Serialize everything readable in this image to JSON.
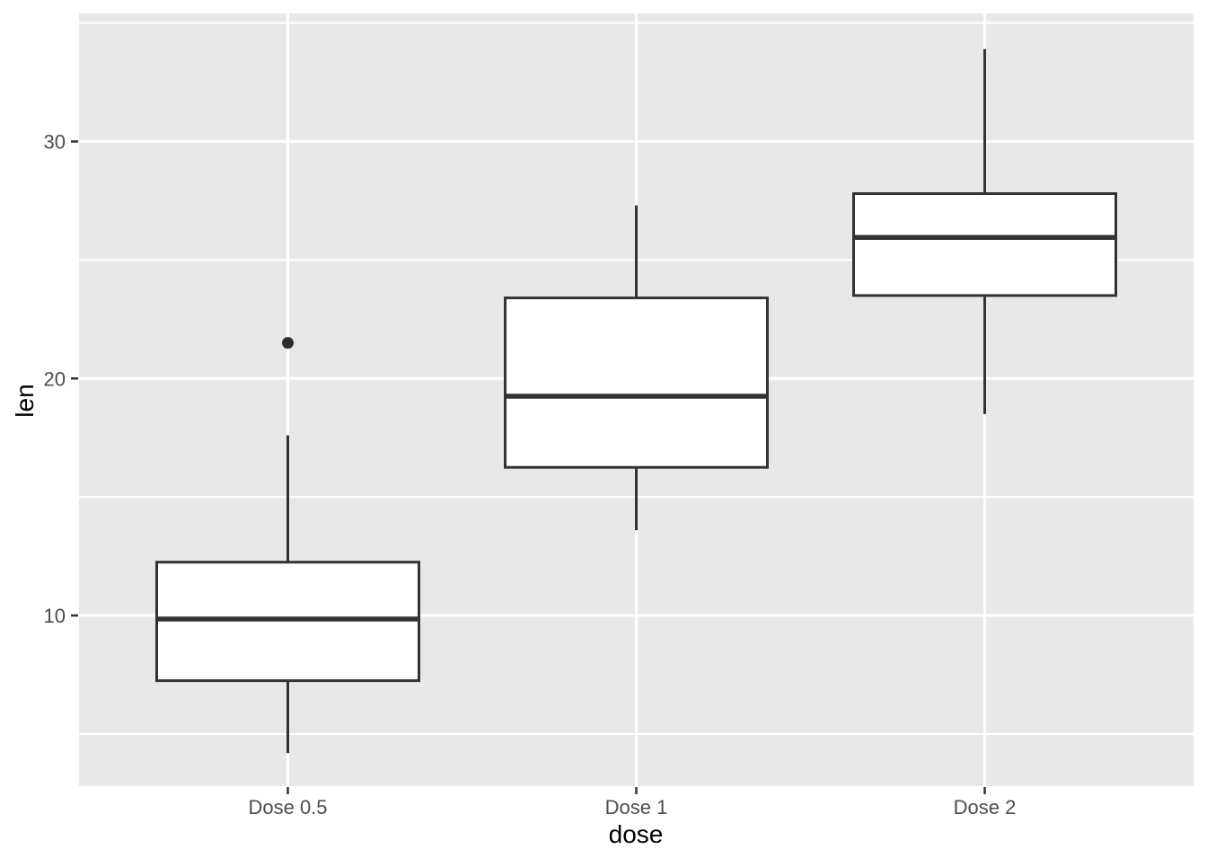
{
  "chart_data": {
    "type": "boxplot",
    "title": "",
    "xlabel": "dose",
    "ylabel": "len",
    "categories": [
      "Dose 0.5",
      "Dose 1",
      "Dose 2"
    ],
    "y_ticks": [
      10,
      20,
      30
    ],
    "y_minor_ticks": [
      5,
      15,
      25,
      35
    ],
    "ylim": [
      2.8,
      35.4
    ],
    "legend": "none",
    "grid": {
      "horizontal_major": true,
      "horizontal_minor": true,
      "vertical_major_at_categories": true,
      "vertical_minor": false
    },
    "series": [
      {
        "category": "Dose 0.5",
        "lower_whisker": 4.2,
        "q1": 7.25,
        "median": 9.85,
        "q3": 12.25,
        "upper_whisker": 17.6,
        "outliers": [
          21.5
        ]
      },
      {
        "category": "Dose 1",
        "lower_whisker": 13.6,
        "q1": 16.25,
        "median": 19.25,
        "q3": 23.4,
        "upper_whisker": 27.3,
        "outliers": []
      },
      {
        "category": "Dose 2",
        "lower_whisker": 18.5,
        "q1": 23.5,
        "median": 25.95,
        "q3": 27.8,
        "upper_whisker": 33.9,
        "outliers": []
      }
    ],
    "colors": {
      "panel_background": "#E8E8E8",
      "gridline": "#FFFFFF",
      "box_fill": "#FFFFFF",
      "box_stroke": "#333333",
      "median_stroke": "#333333",
      "outlier_fill": "#2B2B2B",
      "tick_mark": "#333333",
      "tick_text": "#4D4D4D",
      "title_text": "#000000"
    }
  }
}
